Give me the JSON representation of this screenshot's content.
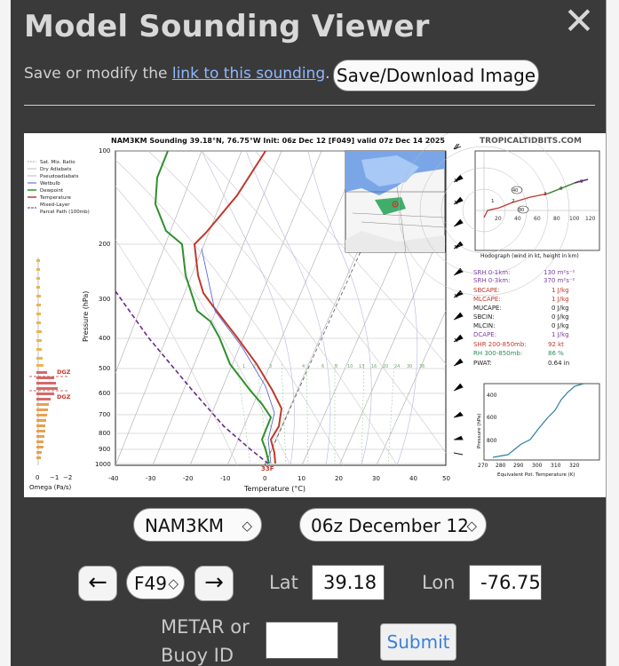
{
  "modal": {
    "title": "Model Sounding Viewer",
    "close_glyph": "✕",
    "subline_prefix": "Save or modify the ",
    "subline_link": "link to this sounding",
    "subline_suffix": ".",
    "save_button": "Save/Download Image"
  },
  "sounding": {
    "header": "NAM3KM Sounding 39.18°N, 76.75°W Init: 06z Dec 12 [F049] valid 07z Dec 14 2025",
    "brand": "TROPICALTIDBITS.COM",
    "legend": [
      "Sat. Mix. Ratio",
      "Dry Adiabats",
      "Pseudoadiabats",
      "Wetbulb",
      "Dewpoint",
      "Temperature",
      "Mixed-Layer",
      "Parcel Path (100mb)"
    ],
    "pressure_label": "Pressure (hPa)",
    "pressure_ticks": [
      "100",
      "200",
      "300",
      "400",
      "500",
      "600",
      "700",
      "800",
      "900",
      "1000"
    ],
    "temp_label": "Temperature (°C)",
    "temp_ticks": [
      "-40",
      "-30",
      "-20",
      "-10",
      "0",
      "10",
      "20",
      "30",
      "40",
      "50"
    ],
    "surface_temp": "33F",
    "omega_label": "Omega (Pa/s)",
    "omega_ticks": [
      "0",
      "−1",
      "−2"
    ],
    "dgz": "DGZ",
    "hodograph_label": "Hodograph (wind in kt, height in km)",
    "hodo_ticks": [
      "20",
      "40",
      "60",
      "80",
      "100",
      "120"
    ],
    "hodo_points": [
      "1",
      "2",
      "3",
      "6",
      "9"
    ],
    "hodo_rings": [
      "40",
      "80"
    ],
    "stats": [
      {
        "name": "SRH 0-1km:",
        "value": "130 m²s⁻²",
        "color": "#7b3fa0"
      },
      {
        "name": "SRH 0-3km:",
        "value": "370 m²s⁻²",
        "color": "#7b3fa0"
      },
      {
        "name": "SBCAPE:",
        "value": "1 J/kg",
        "color": "#c0392b"
      },
      {
        "name": "MLCAPE:",
        "value": "1 J/kg",
        "color": "#c0392b"
      },
      {
        "name": "MUCAPE:",
        "value": "0 J/kg",
        "color": "#222222"
      },
      {
        "name": "SBCIN:",
        "value": "0 J/kg",
        "color": "#222222"
      },
      {
        "name": "MLCIN:",
        "value": "0 J/kg",
        "color": "#222222"
      },
      {
        "name": "DCAPE:",
        "value": "1 J/kg",
        "color": "#7b3fa0"
      },
      {
        "name": "SHR 200-850mb:",
        "value": "92 kt",
        "color": "#c0392b"
      },
      {
        "name": "RH 300-850mb:",
        "value": "86 %",
        "color": "#2e8b57"
      },
      {
        "name": "PWAT:",
        "value": "0.64 in",
        "color": "#222222"
      }
    ],
    "theta_label": "Equivalent Pot. Temperature (K)",
    "theta_xticks": [
      "270",
      "280",
      "290",
      "300",
      "310",
      "320"
    ],
    "theta_yticks": [
      "400",
      "600",
      "800"
    ],
    "theta_ylabel": "Pressure (hPa)",
    "mix_ratio_labels": [
      "1",
      "2",
      "3",
      "4",
      "6",
      "8",
      "10",
      "13",
      "16",
      "20",
      "24",
      "30",
      "36"
    ]
  },
  "controls": {
    "model": "NAM3KM",
    "run": "06z December 12",
    "prev": "←",
    "hour": "F49",
    "next": "→",
    "lat_label": "Lat",
    "lat_value": "39.18",
    "lon_label": "Lon",
    "lon_value": "-76.75",
    "metar_label_1": "METAR or",
    "metar_label_2": "Buoy ID",
    "metar_value": "",
    "submit": "Submit",
    "chevron": "⌃⌄"
  }
}
